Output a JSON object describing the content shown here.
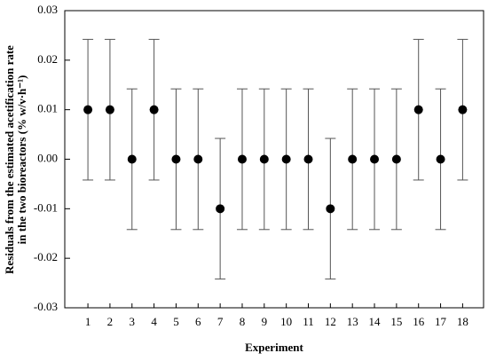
{
  "chart_data": {
    "type": "scatter",
    "x_label": "Experiment",
    "y_label": [
      "Residuals from the estimated acetification rate",
      "in the two bioreactors (% w/v·h⁻¹)"
    ],
    "x": [
      1,
      2,
      3,
      4,
      5,
      6,
      7,
      8,
      9,
      10,
      11,
      12,
      13,
      14,
      15,
      16,
      17,
      18
    ],
    "values": [
      0.01,
      0.01,
      0,
      0.01,
      0,
      0,
      -0.01,
      0,
      0,
      0,
      0,
      -0.01,
      0,
      0,
      0,
      0.01,
      0,
      0.01
    ],
    "errors": [
      0.0142,
      0.0142,
      0.0142,
      0.0142,
      0.0142,
      0.0142,
      0.0142,
      0.0142,
      0.0142,
      0.0142,
      0.0142,
      0.0142,
      0.0142,
      0.0142,
      0.0142,
      0.0142,
      0.0142,
      0.0142
    ],
    "color": "#000000",
    "error_color": "#555555",
    "xlim": [
      -0.05,
      18.95
    ],
    "xticks": [
      1,
      2,
      3,
      4,
      5,
      6,
      7,
      8,
      9,
      10,
      11,
      12,
      13,
      14,
      15,
      16,
      17,
      18
    ],
    "ylim": [
      -0.03,
      0.03
    ],
    "yticks": [
      -0.03,
      -0.02,
      -0.01,
      {
        "value": 0,
        "label": "0.00"
      },
      0.01,
      0.02,
      0.03
    ]
  }
}
